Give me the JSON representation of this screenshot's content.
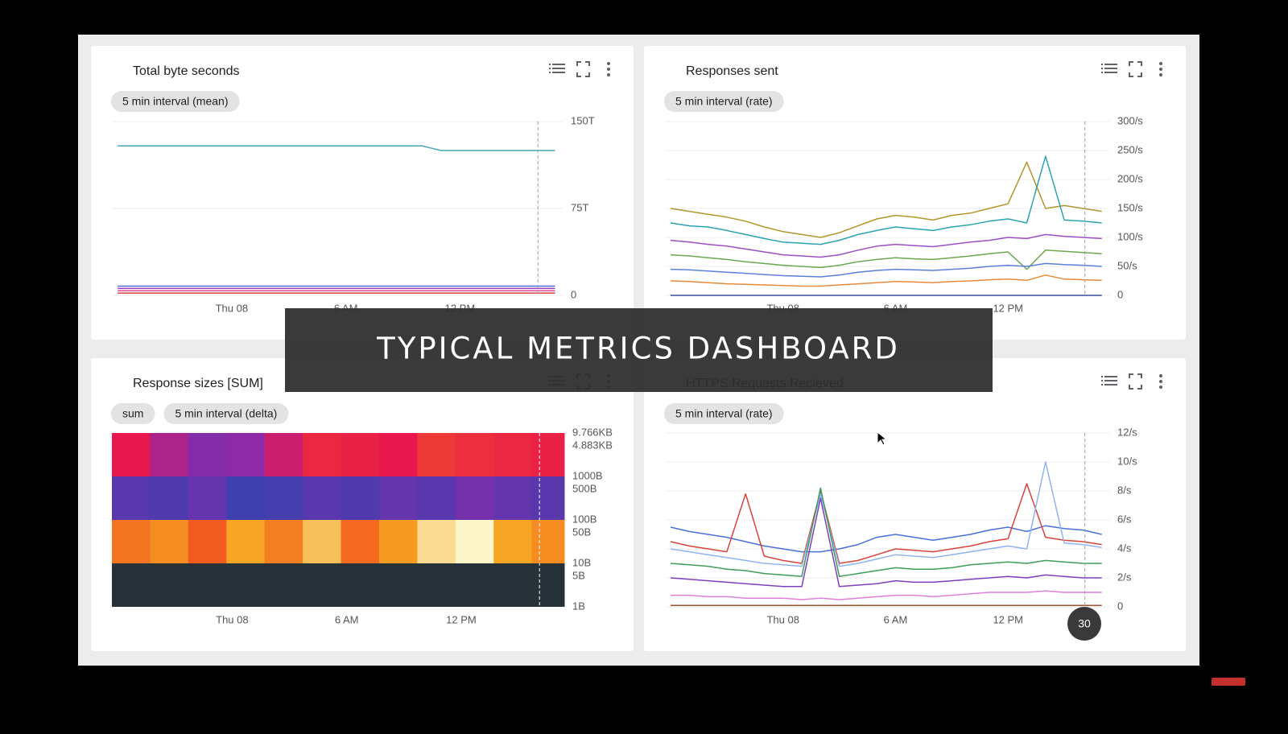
{
  "overlay_title": "TYPICAL METRICS DASHBOARD",
  "badge": "30",
  "chart_data": [
    {
      "type": "line",
      "title": "Total byte seconds",
      "chips": [
        "5 min interval (mean)"
      ],
      "x": [
        -6,
        -5,
        -4,
        -3,
        -2,
        -1,
        0,
        1,
        2,
        3,
        4,
        5,
        6,
        7,
        8,
        9,
        10,
        11,
        12,
        13,
        14,
        15,
        16,
        17
      ],
      "xlim": [
        -6.3,
        17.4
      ],
      "xticks": [
        {
          "value": 0,
          "label": "Thu 08"
        },
        {
          "value": 6,
          "label": "6 AM"
        },
        {
          "value": 12,
          "label": "12 PM"
        }
      ],
      "ylim": [
        0,
        150
      ],
      "yticks": [
        0,
        {
          "value": 75,
          "label": "75T"
        },
        {
          "value": 150,
          "label": "150T"
        }
      ],
      "grid": true,
      "reference_x": 16.1,
      "series": [
        {
          "color": "#3fa9b5",
          "values": [
            129,
            129,
            129,
            129,
            129,
            129,
            129,
            129,
            129,
            129,
            129,
            129,
            129,
            129,
            129,
            129,
            129,
            125,
            125,
            125,
            125,
            125,
            125,
            125
          ]
        },
        {
          "color": "#4a6fd8",
          "values": [
            8,
            8,
            8,
            8,
            8,
            8,
            8,
            8,
            8,
            8,
            8,
            8,
            8,
            8,
            8,
            8,
            8,
            8,
            8,
            8,
            8,
            8,
            8,
            8
          ]
        },
        {
          "color": "#9c3fbf",
          "values": [
            6,
            6,
            6,
            6,
            6,
            6,
            6,
            6,
            6,
            6,
            6,
            6,
            6,
            6,
            6,
            6,
            6,
            6,
            6,
            6,
            6,
            6,
            6,
            6
          ]
        },
        {
          "color": "#e24a9a",
          "values": [
            4,
            4,
            4,
            4,
            4,
            4,
            4,
            4,
            4,
            4,
            4,
            4,
            4,
            4,
            4,
            4,
            4,
            4,
            4,
            4,
            4,
            4,
            4,
            4
          ]
        },
        {
          "color": "#d8433c",
          "values": [
            2,
            2,
            2,
            2,
            2,
            2,
            2,
            2,
            2,
            2,
            2,
            2,
            2,
            2,
            2,
            2,
            2,
            2,
            2,
            2,
            2,
            2,
            2,
            2
          ]
        }
      ]
    },
    {
      "type": "line",
      "title": "Responses sent",
      "chips": [
        "5 min interval (rate)"
      ],
      "x": [
        -6,
        -5,
        -4,
        -3,
        -2,
        -1,
        0,
        1,
        2,
        3,
        4,
        5,
        6,
        7,
        8,
        9,
        10,
        11,
        12,
        13,
        14,
        15,
        16,
        17
      ],
      "xlim": [
        -6.3,
        17.4
      ],
      "xticks": [
        {
          "value": 0,
          "label": "Thu 08"
        },
        {
          "value": 6,
          "label": "6 AM"
        },
        {
          "value": 12,
          "label": "12 PM"
        }
      ],
      "ylim": [
        0,
        300
      ],
      "yticks": [
        0,
        {
          "value": 50,
          "label": "50/s"
        },
        {
          "value": 100,
          "label": "100/s"
        },
        {
          "value": 150,
          "label": "150/s"
        },
        {
          "value": 200,
          "label": "200/s"
        },
        {
          "value": 250,
          "label": "250/s"
        },
        {
          "value": 300,
          "label": "300/s"
        }
      ],
      "grid": true,
      "reference_x": 16.1,
      "series": [
        {
          "color": "#b5942a",
          "values": [
            150,
            145,
            140,
            135,
            128,
            118,
            110,
            105,
            100,
            108,
            120,
            132,
            138,
            135,
            130,
            138,
            142,
            150,
            158,
            230,
            150,
            155,
            150,
            145
          ]
        },
        {
          "color": "#2aa3b0",
          "values": [
            125,
            120,
            118,
            112,
            105,
            98,
            92,
            90,
            88,
            95,
            105,
            112,
            118,
            115,
            112,
            118,
            122,
            128,
            132,
            125,
            240,
            130,
            128,
            125
          ]
        },
        {
          "color": "#9b4fc7",
          "values": [
            95,
            92,
            88,
            85,
            80,
            75,
            70,
            68,
            66,
            70,
            78,
            85,
            88,
            86,
            84,
            88,
            92,
            95,
            100,
            98,
            105,
            102,
            100,
            98
          ]
        },
        {
          "color": "#6aa84f",
          "values": [
            70,
            68,
            65,
            62,
            58,
            55,
            52,
            50,
            48,
            52,
            58,
            62,
            65,
            63,
            62,
            65,
            68,
            72,
            75,
            45,
            78,
            76,
            74,
            72
          ]
        },
        {
          "color": "#5b7fdb",
          "values": [
            45,
            44,
            42,
            40,
            38,
            36,
            34,
            33,
            32,
            35,
            40,
            43,
            45,
            44,
            43,
            45,
            47,
            50,
            52,
            50,
            55,
            53,
            52,
            50
          ]
        },
        {
          "color": "#e8893a",
          "values": [
            25,
            24,
            22,
            20,
            19,
            18,
            17,
            16,
            16,
            18,
            20,
            22,
            24,
            23,
            22,
            24,
            25,
            27,
            28,
            26,
            35,
            28,
            27,
            26
          ]
        },
        {
          "color": "#3b4a9f",
          "values": [
            0,
            0,
            0,
            0,
            0,
            0,
            0,
            0,
            0,
            0,
            0,
            0,
            0,
            0,
            0,
            0,
            0,
            0,
            0,
            0,
            0,
            0,
            0,
            0
          ]
        }
      ]
    },
    {
      "type": "heatmap",
      "title": "Response sizes [SUM]",
      "chips": [
        "sum",
        "5 min interval (delta)"
      ],
      "x_bins": [
        -6.3,
        -4.3,
        -2.3,
        -0.3,
        1.7,
        3.7,
        5.7,
        7.7,
        9.7,
        11.7,
        13.7,
        15.7,
        17.4
      ],
      "xlim": [
        -6.3,
        17.4
      ],
      "xticks": [
        {
          "value": 0,
          "label": "Thu 08"
        },
        {
          "value": 6,
          "label": "6 AM"
        },
        {
          "value": 12,
          "label": "12 PM"
        }
      ],
      "y_bins": [
        1,
        10,
        100,
        1000,
        10000
      ],
      "ylim": [
        1,
        10000
      ],
      "log": true,
      "yticks": [
        {
          "value": 1,
          "label": "1B"
        },
        {
          "value": 5,
          "label": "5B"
        },
        {
          "value": 10,
          "label": "10B"
        },
        {
          "value": 50,
          "label": "50B"
        },
        {
          "value": 100,
          "label": "100B"
        },
        {
          "value": 500,
          "label": "500B"
        },
        {
          "value": 1000,
          "label": "1000B"
        },
        {
          "value": 5000,
          "label": "4.883KB"
        },
        {
          "value": 10000,
          "label": "9.766KB"
        }
      ],
      "grid": false,
      "reference_x": 16.1,
      "colorscale": [
        [
          0,
          "#263238"
        ],
        [
          15,
          "#3f3fb0"
        ],
        [
          30,
          "#8e2aa8"
        ],
        [
          45,
          "#e8174e"
        ],
        [
          65,
          "#f25b1f"
        ],
        [
          80,
          "#f5a523"
        ],
        [
          95,
          "#fdf6c8"
        ]
      ],
      "values": [
        [
          0,
          0,
          0,
          0,
          0,
          0,
          0,
          0,
          0,
          0,
          0,
          0
        ],
        [
          70,
          75,
          65,
          80,
          72,
          85,
          68,
          78,
          90,
          95,
          80,
          75
        ],
        [
          20,
          18,
          22,
          15,
          16,
          20,
          18,
          22,
          20,
          25,
          22,
          20
        ],
        [
          45,
          35,
          28,
          30,
          40,
          50,
          48,
          45,
          55,
          52,
          50,
          48
        ]
      ]
    },
    {
      "type": "line",
      "title": "HTTPS Requests Recieved",
      "chips": [
        "5 min interval (rate)"
      ],
      "x": [
        -6,
        -5,
        -4,
        -3,
        -2,
        -1,
        0,
        1,
        2,
        3,
        4,
        5,
        6,
        7,
        8,
        9,
        10,
        11,
        12,
        13,
        14,
        15,
        16,
        17
      ],
      "xlim": [
        -6.3,
        17.4
      ],
      "xticks": [
        {
          "value": 0,
          "label": "Thu 08"
        },
        {
          "value": 6,
          "label": "6 AM"
        },
        {
          "value": 12,
          "label": "12 PM"
        }
      ],
      "ylim": [
        0,
        12
      ],
      "yticks": [
        0,
        {
          "value": 2,
          "label": "2/s"
        },
        {
          "value": 4,
          "label": "4/s"
        },
        {
          "value": 6,
          "label": "6/s"
        },
        {
          "value": 8,
          "label": "8/s"
        },
        {
          "value": 10,
          "label": "10/s"
        },
        {
          "value": 12,
          "label": "12/s"
        }
      ],
      "grid": true,
      "reference_x": 16.1,
      "series": [
        {
          "color": "#4a6fd8",
          "values": [
            5.5,
            5.2,
            5,
            4.8,
            4.5,
            4.2,
            4,
            3.8,
            3.8,
            4,
            4.3,
            4.8,
            5,
            4.8,
            4.6,
            4.8,
            5,
            5.3,
            5.5,
            5.2,
            5.6,
            5.4,
            5.3,
            5
          ]
        },
        {
          "color": "#d8433c",
          "values": [
            4.5,
            4.2,
            4,
            3.8,
            7.8,
            3.5,
            3.2,
            3,
            8,
            3,
            3.2,
            3.6,
            4,
            3.9,
            3.8,
            4,
            4.2,
            4.5,
            4.7,
            8.5,
            4.8,
            4.6,
            4.5,
            4.3
          ]
        },
        {
          "color": "#8fb3f0",
          "values": [
            4,
            3.8,
            3.6,
            3.4,
            3.2,
            3,
            2.9,
            2.8,
            7.8,
            2.8,
            3,
            3.3,
            3.6,
            3.5,
            3.4,
            3.6,
            3.8,
            4,
            4.2,
            4,
            10,
            4.4,
            4.3,
            4.1
          ]
        },
        {
          "color": "#3f9d5a",
          "values": [
            3,
            2.9,
            2.8,
            2.6,
            2.5,
            2.3,
            2.2,
            2.1,
            8.2,
            2.1,
            2.3,
            2.5,
            2.7,
            2.6,
            2.6,
            2.7,
            2.9,
            3,
            3.1,
            3,
            3.2,
            3.1,
            3,
            3
          ]
        },
        {
          "color": "#7e3fbf",
          "values": [
            2,
            1.9,
            1.8,
            1.7,
            1.6,
            1.5,
            1.4,
            1.4,
            7.5,
            1.4,
            1.5,
            1.6,
            1.8,
            1.7,
            1.7,
            1.8,
            1.9,
            2,
            2.1,
            2,
            2.2,
            2.1,
            2,
            2
          ]
        },
        {
          "color": "#e07fd8",
          "values": [
            0.8,
            0.8,
            0.7,
            0.7,
            0.6,
            0.6,
            0.6,
            0.5,
            0.6,
            0.5,
            0.6,
            0.7,
            0.8,
            0.8,
            0.7,
            0.8,
            0.9,
            1,
            1,
            1,
            1.1,
            1,
            1,
            1
          ]
        },
        {
          "color": "#a0522d",
          "values": [
            0.1,
            0.1,
            0.1,
            0.1,
            0.1,
            0.1,
            0.1,
            0.1,
            0.1,
            0.1,
            0.1,
            0.1,
            0.1,
            0.1,
            0.1,
            0.1,
            0.1,
            0.1,
            0.1,
            0.1,
            0.1,
            0.1,
            0.1,
            0.1
          ]
        }
      ]
    }
  ]
}
